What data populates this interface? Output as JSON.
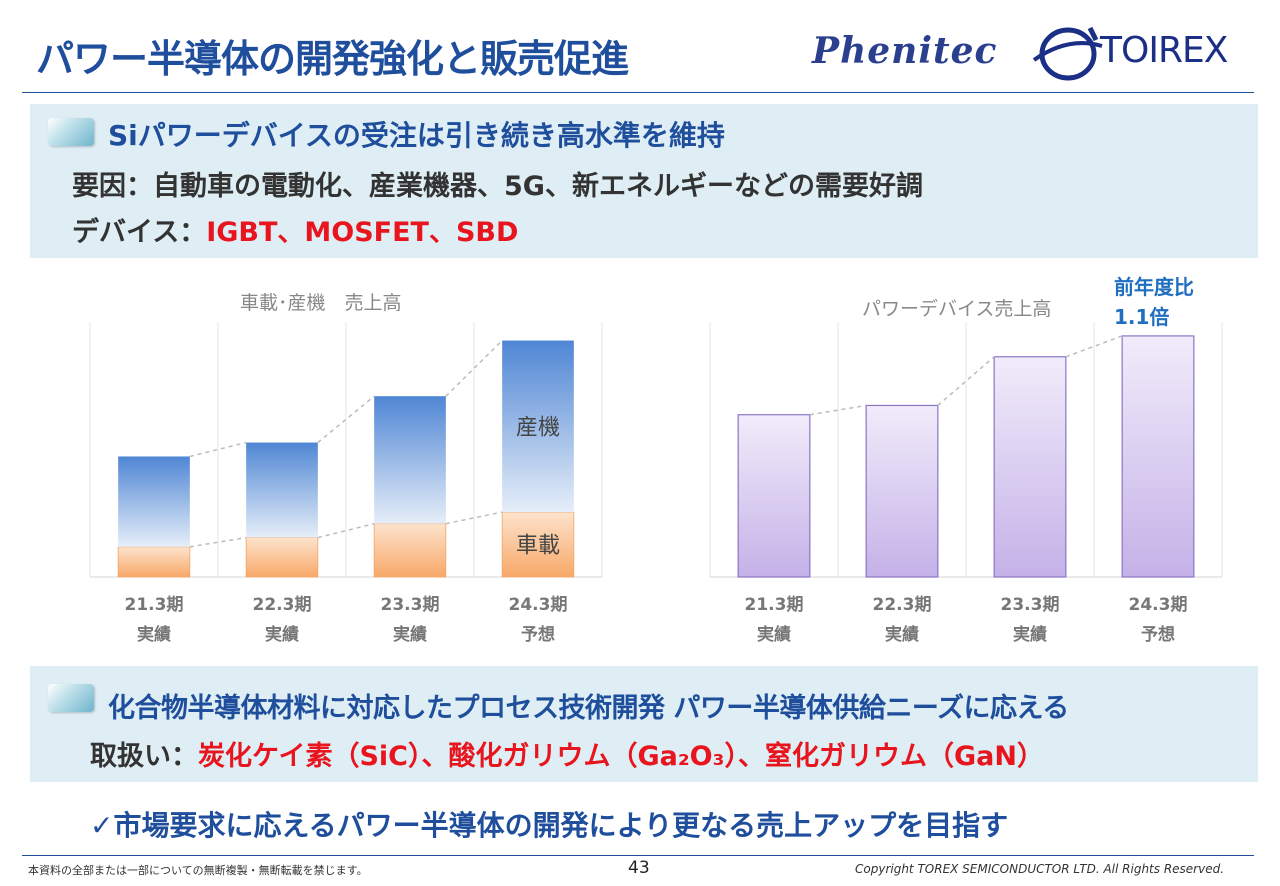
{
  "header": {
    "title": "パワー半導体の開発強化と販売促進",
    "logo_left": "Phenitec",
    "logo_right": "TOIREX"
  },
  "section1": {
    "heading": "Siパワーデバイスの受注は引き続き高水準を維持",
    "factor_label": "要因：",
    "factor_text": "自動車の電動化、産業機器、5G、新エネルギーなどの需要好調",
    "device_label": "デバイス：",
    "device_text": "IGBT、MOSFET、SBD"
  },
  "section2": {
    "heading": "化合物半導体材料に対応したプロセス技術開発 パワー半導体供給ニーズに応える",
    "handling_label": "取扱い：",
    "handling_text": "炭化ケイ素（SiC）、酸化ガリウム（Ga₂O₃）、窒化ガリウム（GaN）"
  },
  "conclusion": "✓市場要求に応えるパワー半導体の開発により更なる売上アップを目指す",
  "footer": {
    "notice": "本資料の全部または一部についての無断複製・無断転載を禁じます。",
    "page": "43",
    "copyright": "Copyright TOREX SEMICONDUCTOR LTD.  All Rights Reserved."
  },
  "colors": {
    "title": "#1f4e9c",
    "accent_red": "#e8141e",
    "bar_blue": "#5b8fd6",
    "bar_orange": "#f9b27a",
    "bar_purple": "#c9b8ea"
  },
  "chart_data": [
    {
      "type": "bar",
      "stacked": true,
      "title": "車載･産機　売上高",
      "categories": [
        "21.3期",
        "22.3期",
        "23.3期",
        "24.3期"
      ],
      "category_sub": [
        "実績",
        "実績",
        "実績",
        "予想"
      ],
      "series": [
        {
          "name": "車載",
          "values": [
            13,
            17,
            23,
            28
          ]
        },
        {
          "name": "産機",
          "values": [
            39,
            41,
            55,
            74
          ]
        }
      ],
      "ylim": [
        0,
        110
      ]
    },
    {
      "type": "bar",
      "title": "パワーデバイス売上高",
      "annotation": "前年度比\n1.1倍",
      "categories": [
        "21.3期",
        "22.3期",
        "23.3期",
        "24.3期"
      ],
      "category_sub": [
        "実績",
        "実績",
        "実績",
        "予想"
      ],
      "values": [
        70,
        74,
        95,
        104
      ],
      "ylim": [
        0,
        110
      ]
    }
  ]
}
